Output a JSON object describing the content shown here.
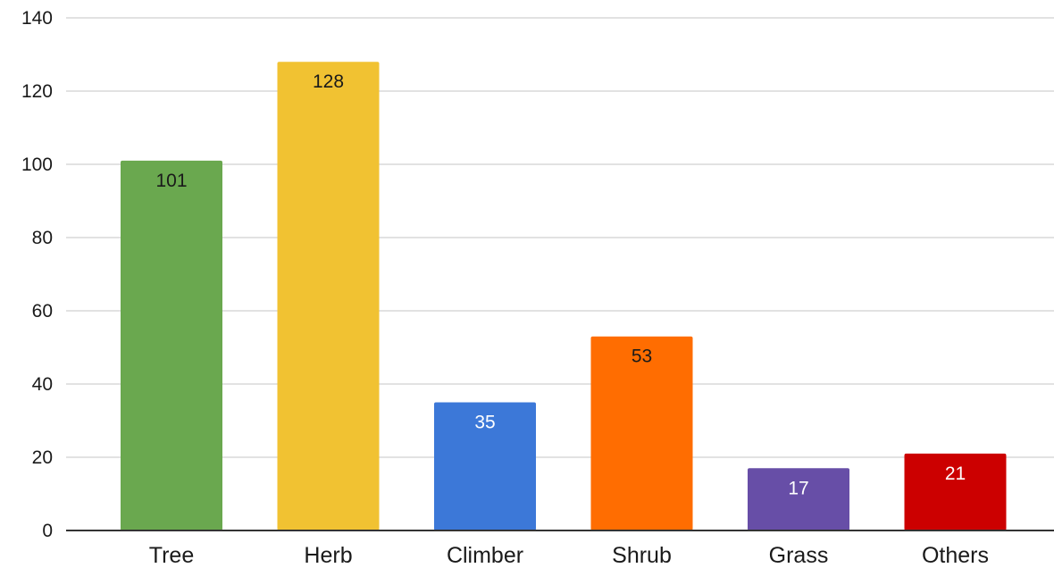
{
  "chart_data": {
    "type": "bar",
    "categories": [
      "Tree",
      "Herb",
      "Climber",
      "Shrub",
      "Grass",
      "Others"
    ],
    "values": [
      101,
      128,
      35,
      53,
      17,
      21
    ],
    "data_labels": [
      "101",
      "128",
      "35",
      "53",
      "17",
      "21"
    ],
    "colors": [
      "#6aa84f",
      "#f1c232",
      "#3c78d8",
      "#ff6d01",
      "#674ea7",
      "#cc0000"
    ],
    "label_colors": [
      "#1a1a1a",
      "#1a1a1a",
      "#ffffff",
      "#1a1a1a",
      "#ffffff",
      "#ffffff"
    ],
    "ylim": [
      0,
      140
    ],
    "yticks": [
      0,
      20,
      40,
      60,
      80,
      100,
      120,
      140
    ],
    "ytick_labels": [
      "0",
      "20",
      "40",
      "60",
      "80",
      "100",
      "120",
      "140"
    ],
    "grid": true,
    "legend": "none"
  }
}
